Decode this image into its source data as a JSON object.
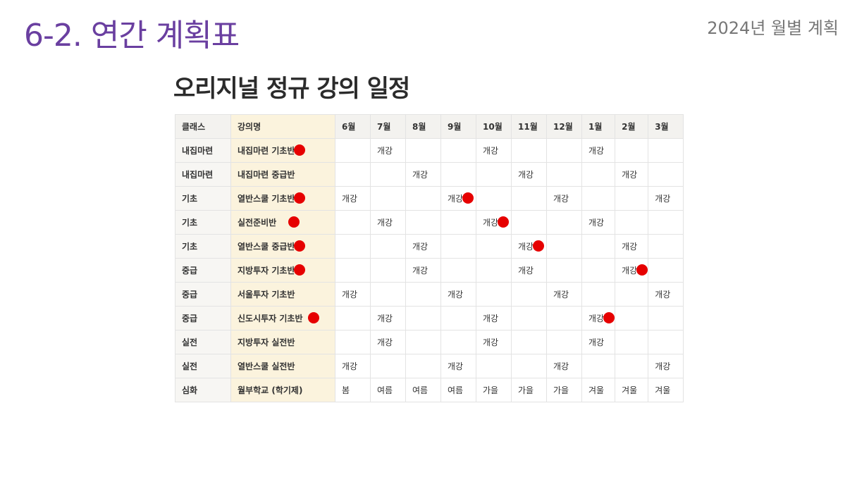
{
  "header": {
    "title": "6-2. 연간 계획표",
    "subtitle": "2024년 월별 계획"
  },
  "heading": "오리지널 정규 강의 일정",
  "table": {
    "columns": [
      "클래스",
      "강의명",
      "6월",
      "7월",
      "8월",
      "9월",
      "10월",
      "11월",
      "12월",
      "1월",
      "2월",
      "3월"
    ],
    "rows": [
      {
        "class": "내집마련",
        "name": "내집마련 기초반",
        "cells": [
          "",
          "개강",
          "",
          "",
          "개강",
          "",
          "",
          "개강",
          "",
          ""
        ]
      },
      {
        "class": "내집마련",
        "name": "내집마련 중급반",
        "cells": [
          "",
          "",
          "개강",
          "",
          "",
          "개강",
          "",
          "",
          "개강",
          ""
        ]
      },
      {
        "class": "기초",
        "name": "열반스쿨 기초반",
        "cells": [
          "개강",
          "",
          "",
          "개강",
          "",
          "",
          "개강",
          "",
          "",
          "개강"
        ]
      },
      {
        "class": "기초",
        "name": "실전준비반",
        "cells": [
          "",
          "개강",
          "",
          "",
          "개강",
          "",
          "",
          "개강",
          "",
          ""
        ]
      },
      {
        "class": "기초",
        "name": "열반스쿨 중급반",
        "cells": [
          "",
          "",
          "개강",
          "",
          "",
          "개강",
          "",
          "",
          "개강",
          ""
        ]
      },
      {
        "class": "중급",
        "name": "지방투자 기초반",
        "cells": [
          "",
          "",
          "개강",
          "",
          "",
          "개강",
          "",
          "",
          "개강",
          ""
        ]
      },
      {
        "class": "중급",
        "name": "서울투자 기초반",
        "cells": [
          "개강",
          "",
          "",
          "개강",
          "",
          "",
          "개강",
          "",
          "",
          "개강"
        ]
      },
      {
        "class": "중급",
        "name": "신도시투자 기초반",
        "cells": [
          "",
          "개강",
          "",
          "",
          "개강",
          "",
          "",
          "개강",
          "",
          ""
        ]
      },
      {
        "class": "실전",
        "name": "지방투자 실전반",
        "cells": [
          "",
          "개강",
          "",
          "",
          "개강",
          "",
          "",
          "개강",
          "",
          ""
        ]
      },
      {
        "class": "실전",
        "name": "열반스쿨 실전반",
        "cells": [
          "개강",
          "",
          "",
          "개강",
          "",
          "",
          "개강",
          "",
          "",
          "개강"
        ]
      },
      {
        "class": "심화",
        "name": "월부학교 (학기제)",
        "cells": [
          "봄",
          "여름",
          "여름",
          "여름",
          "가을",
          "가을",
          "가을",
          "겨울",
          "겨울",
          "겨울"
        ]
      }
    ]
  },
  "markers": {
    "color": "#e60000",
    "name_dot_rows": [
      0,
      2,
      3,
      4,
      5,
      7
    ],
    "cell_dots": [
      [
        2,
        3
      ],
      [
        3,
        4
      ],
      [
        4,
        5
      ],
      [
        5,
        8
      ],
      [
        7,
        7
      ]
    ]
  }
}
